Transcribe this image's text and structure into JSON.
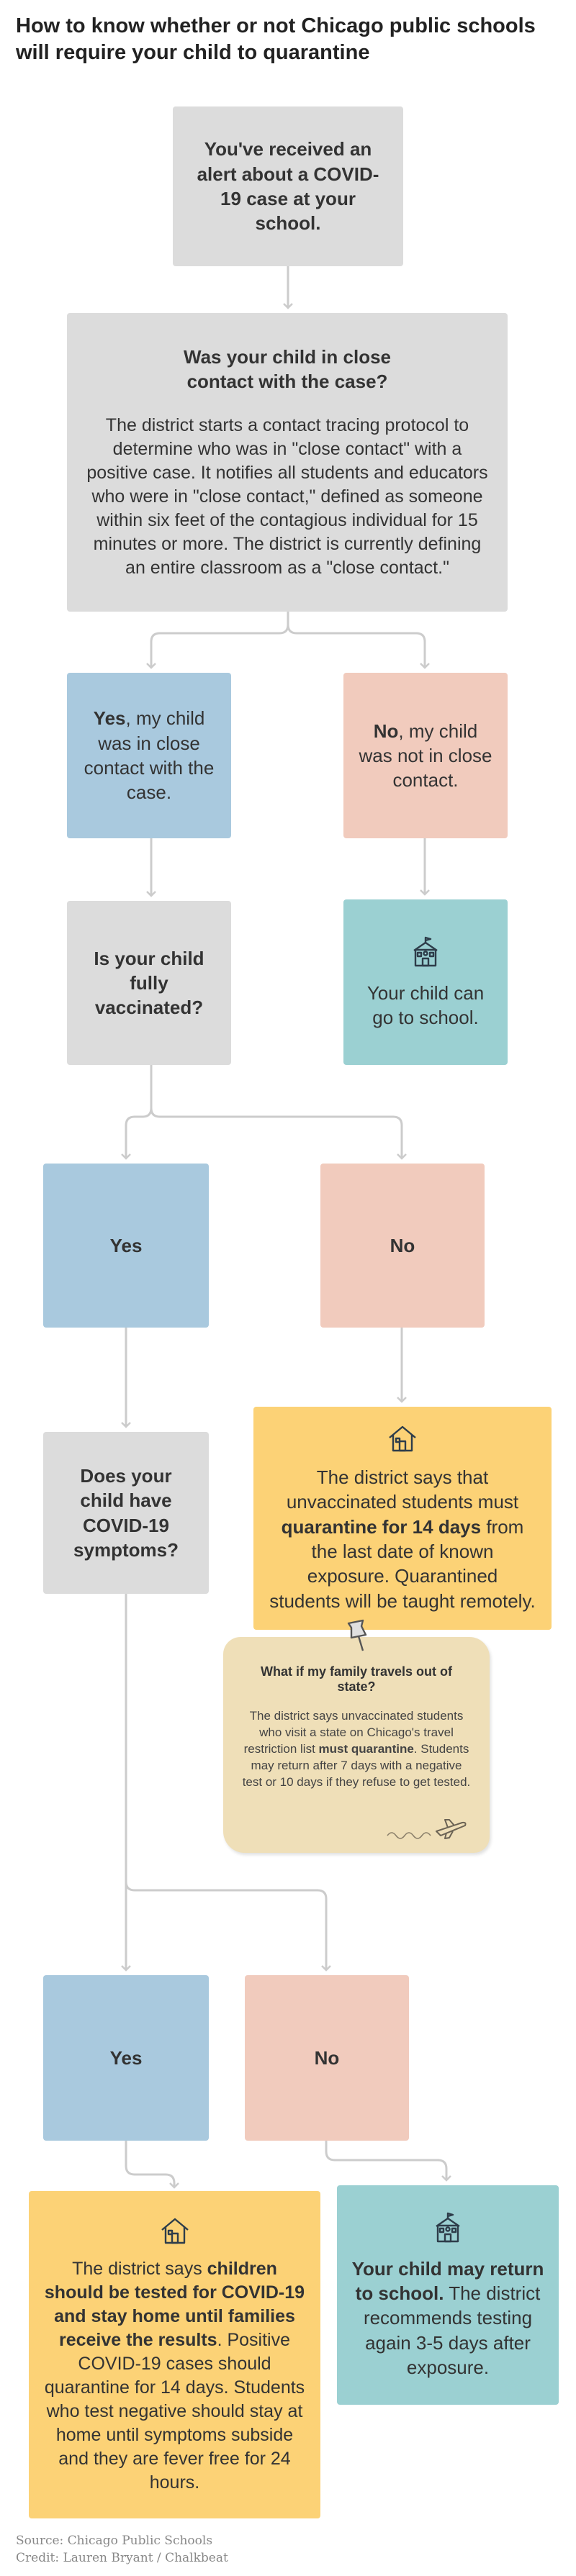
{
  "title": "How to know whether or not Chicago public schools will require your child to quarantine",
  "nodes": {
    "alert": "You've received an alert about a COVID-19 case at your school.",
    "close_contact_question": "Was your child in close contact with the case?",
    "close_contact_explanation": "The district starts a contact tracing protocol to determine who was in \"close contact\" with a positive case. It notifies all students and educators who were in \"close contact,\" defined as someone within six feet of the contagious individual for 15 minutes or more. The district is currently defining an entire classroom as a \"close contact.\"",
    "yes_contact": {
      "bold": "Yes",
      "rest": ", my child was in close contact with the case."
    },
    "no_contact": {
      "bold": "No",
      "rest": ", my child was not in close contact."
    },
    "vaccinated_question": "Is your child fully vaccinated?",
    "can_go_to_school": "Your child can go to school.",
    "vacc_yes": "Yes",
    "vacc_no": "No",
    "symptoms_question": "Does your child have COVID-19 symptoms?",
    "quarantine": {
      "pre": "The district says that unvaccinated students must ",
      "bold": "quarantine for 14 days",
      "post": " from the last date of known exposure. Quarantined students will be taught remotely."
    },
    "travel_note": {
      "title": "What if my family travels out of state?",
      "pre": "The district says unvaccinated students who visit a state on Chicago's travel restriction list ",
      "bold": "must quarantine",
      "post": ". Students may return after 7 days with a negative test or 10 days if they refuse to get tested."
    },
    "symp_yes": "Yes",
    "symp_no": "No",
    "tested": {
      "pre": "The district says ",
      "bold": "children should be tested for COVID-19 and stay home until families receive the results",
      "post": ". Positive COVID-19 cases should quarantine for 14 days. Students who test negative should stay at home until symptoms subside and they are fever free for 24 hours."
    },
    "return": {
      "bold": "Your child may return to school.",
      "post": " The district recommends testing again 3-5 days after exposure."
    }
  },
  "icons": [
    "school-icon",
    "house-icon",
    "pushpin-icon",
    "airplane-icon"
  ],
  "colors": {
    "gray": "#dcdcdc",
    "blue": "#a9c9de",
    "pink": "#f1cbbd",
    "teal": "#9bd0d2",
    "yellow": "#fcd276",
    "note": "#efdfb8",
    "arrow": "#cccccc"
  },
  "footer": {
    "source": "Source: Chicago Public Schools",
    "credit": "Credit: Lauren Bryant / Chalkbeat"
  }
}
